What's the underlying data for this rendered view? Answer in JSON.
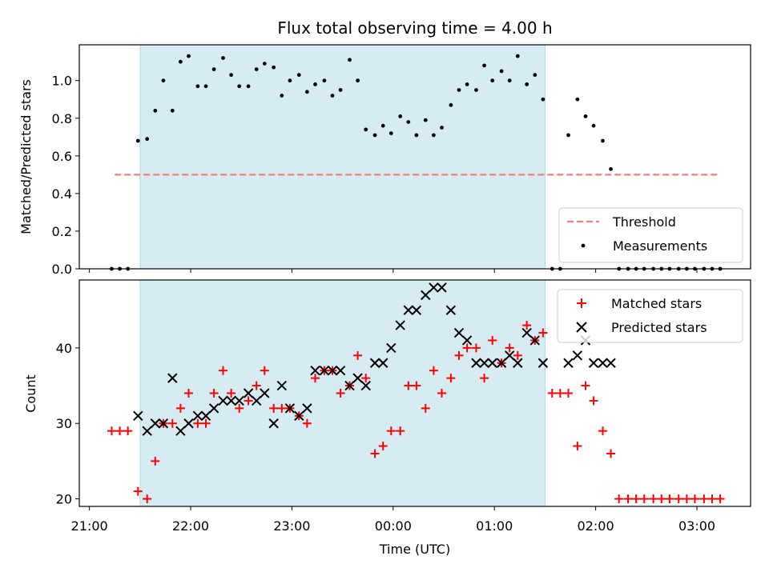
{
  "chart_data": [
    {
      "type": "scatter",
      "title": "Flux total observing time = 4.00 h",
      "ylabel": "Matched/Predicted stars",
      "ylim": [
        0,
        1.19
      ],
      "yticks": [
        "0.0",
        "0.2",
        "0.4",
        "0.6",
        "0.8",
        "1.0"
      ],
      "shaded_interval_hours": [
        21.5,
        25.5
      ],
      "threshold": {
        "name": "Threshold",
        "value": 0.5,
        "x_range_hours": [
          21.25,
          27.2
        ],
        "color": "#f08080"
      },
      "series": [
        {
          "name": "Measurements",
          "color": "#000000",
          "marker": "dot",
          "x": [
            21.22,
            21.3,
            21.38,
            21.48,
            21.57,
            21.65,
            21.73,
            21.82,
            21.9,
            21.98,
            22.07,
            22.15,
            22.23,
            22.32,
            22.4,
            22.48,
            22.57,
            22.65,
            22.73,
            22.82,
            22.9,
            22.98,
            23.07,
            23.15,
            23.23,
            23.32,
            23.4,
            23.48,
            23.57,
            23.65,
            23.73,
            23.82,
            23.9,
            23.98,
            24.07,
            24.15,
            24.23,
            24.32,
            24.4,
            24.48,
            24.57,
            24.65,
            24.73,
            24.82,
            24.9,
            24.98,
            25.07,
            25.15,
            25.23,
            25.32,
            25.4,
            25.48,
            25.57,
            25.65,
            25.73,
            25.82,
            25.9,
            25.98,
            26.07,
            26.15,
            26.23,
            26.32,
            26.4,
            26.48,
            26.57,
            26.65,
            26.73,
            26.82,
            26.9,
            26.98,
            27.07,
            27.15,
            27.23
          ],
          "y": [
            0.0,
            0.0,
            0.0,
            0.68,
            0.69,
            0.84,
            1.0,
            0.84,
            1.1,
            1.13,
            0.97,
            0.97,
            1.06,
            1.12,
            1.03,
            0.97,
            0.97,
            1.06,
            1.09,
            1.07,
            0.92,
            1.0,
            1.03,
            0.94,
            0.98,
            1.0,
            0.92,
            0.95,
            1.11,
            1.0,
            0.74,
            0.71,
            0.76,
            0.72,
            0.81,
            0.78,
            0.71,
            0.79,
            0.71,
            0.75,
            0.87,
            0.95,
            0.98,
            0.95,
            1.08,
            1.0,
            1.05,
            1.0,
            1.13,
            0.98,
            1.03,
            0.9,
            0.0,
            0.0,
            0.71,
            0.9,
            0.81,
            0.76,
            0.68,
            0.53,
            0.0,
            0.0,
            0.0,
            0.0,
            0.0,
            0.0,
            0.0,
            0.0,
            0.0,
            0.0,
            0.0,
            0.0,
            0.0
          ]
        }
      ]
    },
    {
      "type": "scatter",
      "xlabel": "Time (UTC)",
      "ylabel": "Count",
      "ylim": [
        19,
        49
      ],
      "yticks": [
        "20",
        "30",
        "40"
      ],
      "xlim": [
        20.9,
        27.53
      ],
      "xticks": [
        "21:00",
        "22:00",
        "23:00",
        "00:00",
        "01:00",
        "02:00",
        "03:00"
      ],
      "shaded_interval_hours": [
        21.5,
        25.5
      ],
      "series": [
        {
          "name": "Matched stars",
          "color": "#ff0000",
          "marker": "plus",
          "x": [
            21.22,
            21.3,
            21.38,
            21.48,
            21.57,
            21.65,
            21.73,
            21.82,
            21.9,
            21.98,
            22.07,
            22.15,
            22.23,
            22.32,
            22.4,
            22.48,
            22.57,
            22.65,
            22.73,
            22.82,
            22.9,
            22.98,
            23.07,
            23.15,
            23.23,
            23.32,
            23.4,
            23.48,
            23.57,
            23.65,
            23.73,
            23.82,
            23.9,
            23.98,
            24.07,
            24.15,
            24.23,
            24.32,
            24.4,
            24.48,
            24.57,
            24.65,
            24.73,
            24.82,
            24.9,
            24.98,
            25.07,
            25.15,
            25.23,
            25.32,
            25.4,
            25.48,
            25.57,
            25.65,
            25.73,
            25.82,
            25.9,
            25.98,
            26.07,
            26.15,
            26.23,
            26.32,
            26.4,
            26.48,
            26.57,
            26.65,
            26.73,
            26.82,
            26.9,
            26.98,
            27.07,
            27.15,
            27.23
          ],
          "y": [
            29,
            29,
            29,
            21,
            20,
            25,
            30,
            30,
            32,
            34,
            30,
            30,
            34,
            37,
            34,
            32,
            33,
            35,
            37,
            32,
            32,
            32,
            31,
            30,
            36,
            37,
            37,
            34,
            35,
            39,
            36,
            26,
            27,
            29,
            29,
            35,
            35,
            32,
            37,
            34,
            36,
            39,
            40,
            40,
            36,
            41,
            38,
            40,
            39,
            43,
            41,
            42,
            34,
            34,
            34,
            27,
            35,
            33,
            29,
            26,
            20,
            20,
            20,
            20,
            20,
            20,
            20,
            20,
            20,
            20,
            20,
            20,
            20
          ]
        },
        {
          "name": "Predicted stars",
          "color": "#000000",
          "marker": "x",
          "x": [
            21.48,
            21.57,
            21.65,
            21.73,
            21.82,
            21.9,
            21.98,
            22.07,
            22.15,
            22.23,
            22.32,
            22.4,
            22.48,
            22.57,
            22.65,
            22.73,
            22.82,
            22.9,
            22.98,
            23.07,
            23.15,
            23.23,
            23.32,
            23.4,
            23.48,
            23.57,
            23.65,
            23.73,
            23.82,
            23.9,
            23.98,
            24.07,
            24.15,
            24.23,
            24.32,
            24.4,
            24.48,
            24.57,
            24.65,
            24.73,
            24.82,
            24.9,
            24.98,
            25.07,
            25.15,
            25.23,
            25.32,
            25.4,
            25.48,
            25.73,
            25.82,
            25.9,
            25.98,
            26.07,
            26.15
          ],
          "y": [
            31,
            29,
            30,
            30,
            36,
            29,
            30,
            31,
            31,
            32,
            33,
            33,
            33,
            34,
            33,
            34,
            30,
            35,
            32,
            31,
            32,
            37,
            37,
            37,
            37,
            35,
            36,
            35,
            38,
            38,
            40,
            43,
            45,
            45,
            47,
            48,
            48,
            45,
            42,
            41,
            38,
            38,
            38,
            38,
            39,
            38,
            42,
            41,
            38,
            38,
            39,
            41,
            38,
            38,
            38
          ]
        }
      ]
    }
  ]
}
